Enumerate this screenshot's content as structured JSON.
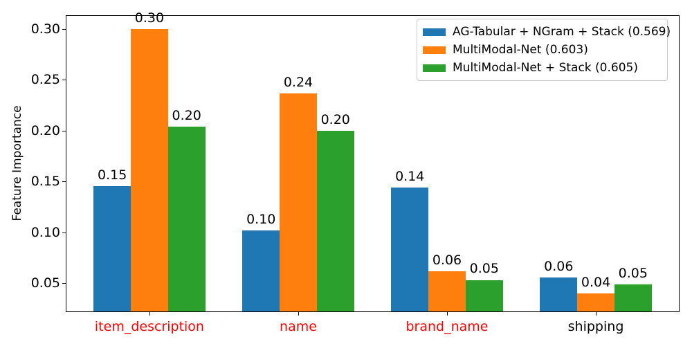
{
  "chart_data": {
    "type": "bar",
    "title": "",
    "xlabel": "",
    "ylabel": "Feature Importance",
    "categories": [
      "item_description",
      "name",
      "brand_name",
      "shipping"
    ],
    "category_label_colors": [
      "#ff0000",
      "#ff0000",
      "#ff0000",
      "#000000"
    ],
    "series": [
      {
        "name": "AG-Tabular + NGram + Stack (0.569)",
        "color": "#1f77b4",
        "values": [
          0.1457,
          0.1022,
          0.1439,
          0.0561
        ],
        "value_labels": [
          "0.15",
          "0.10",
          "0.14",
          "0.06"
        ]
      },
      {
        "name": "MultiModal-Net (0.603)",
        "color": "#ff7f0e",
        "values": [
          0.2995,
          0.2365,
          0.0617,
          0.04
        ],
        "value_labels": [
          "0.30",
          "0.24",
          "0.06",
          "0.04"
        ]
      },
      {
        "name": "MultiModal-Net + Stack (0.605)",
        "color": "#2ca02c",
        "values": [
          0.204,
          0.1997,
          0.0534,
          0.0488
        ],
        "value_labels": [
          "0.20",
          "0.20",
          "0.05",
          "0.05"
        ]
      }
    ],
    "yticks": [
      0.05,
      0.1,
      0.15,
      0.2,
      0.25,
      0.3
    ],
    "ytick_labels": [
      "0.05",
      "0.10",
      "0.15",
      "0.20",
      "0.25",
      "0.30"
    ],
    "ylim": [
      0.0218,
      0.3133
    ],
    "xlim": [
      -0.5625,
      3.5625
    ],
    "bar_width_data_units": 0.25,
    "grid": false,
    "legend_position": "upper right"
  }
}
